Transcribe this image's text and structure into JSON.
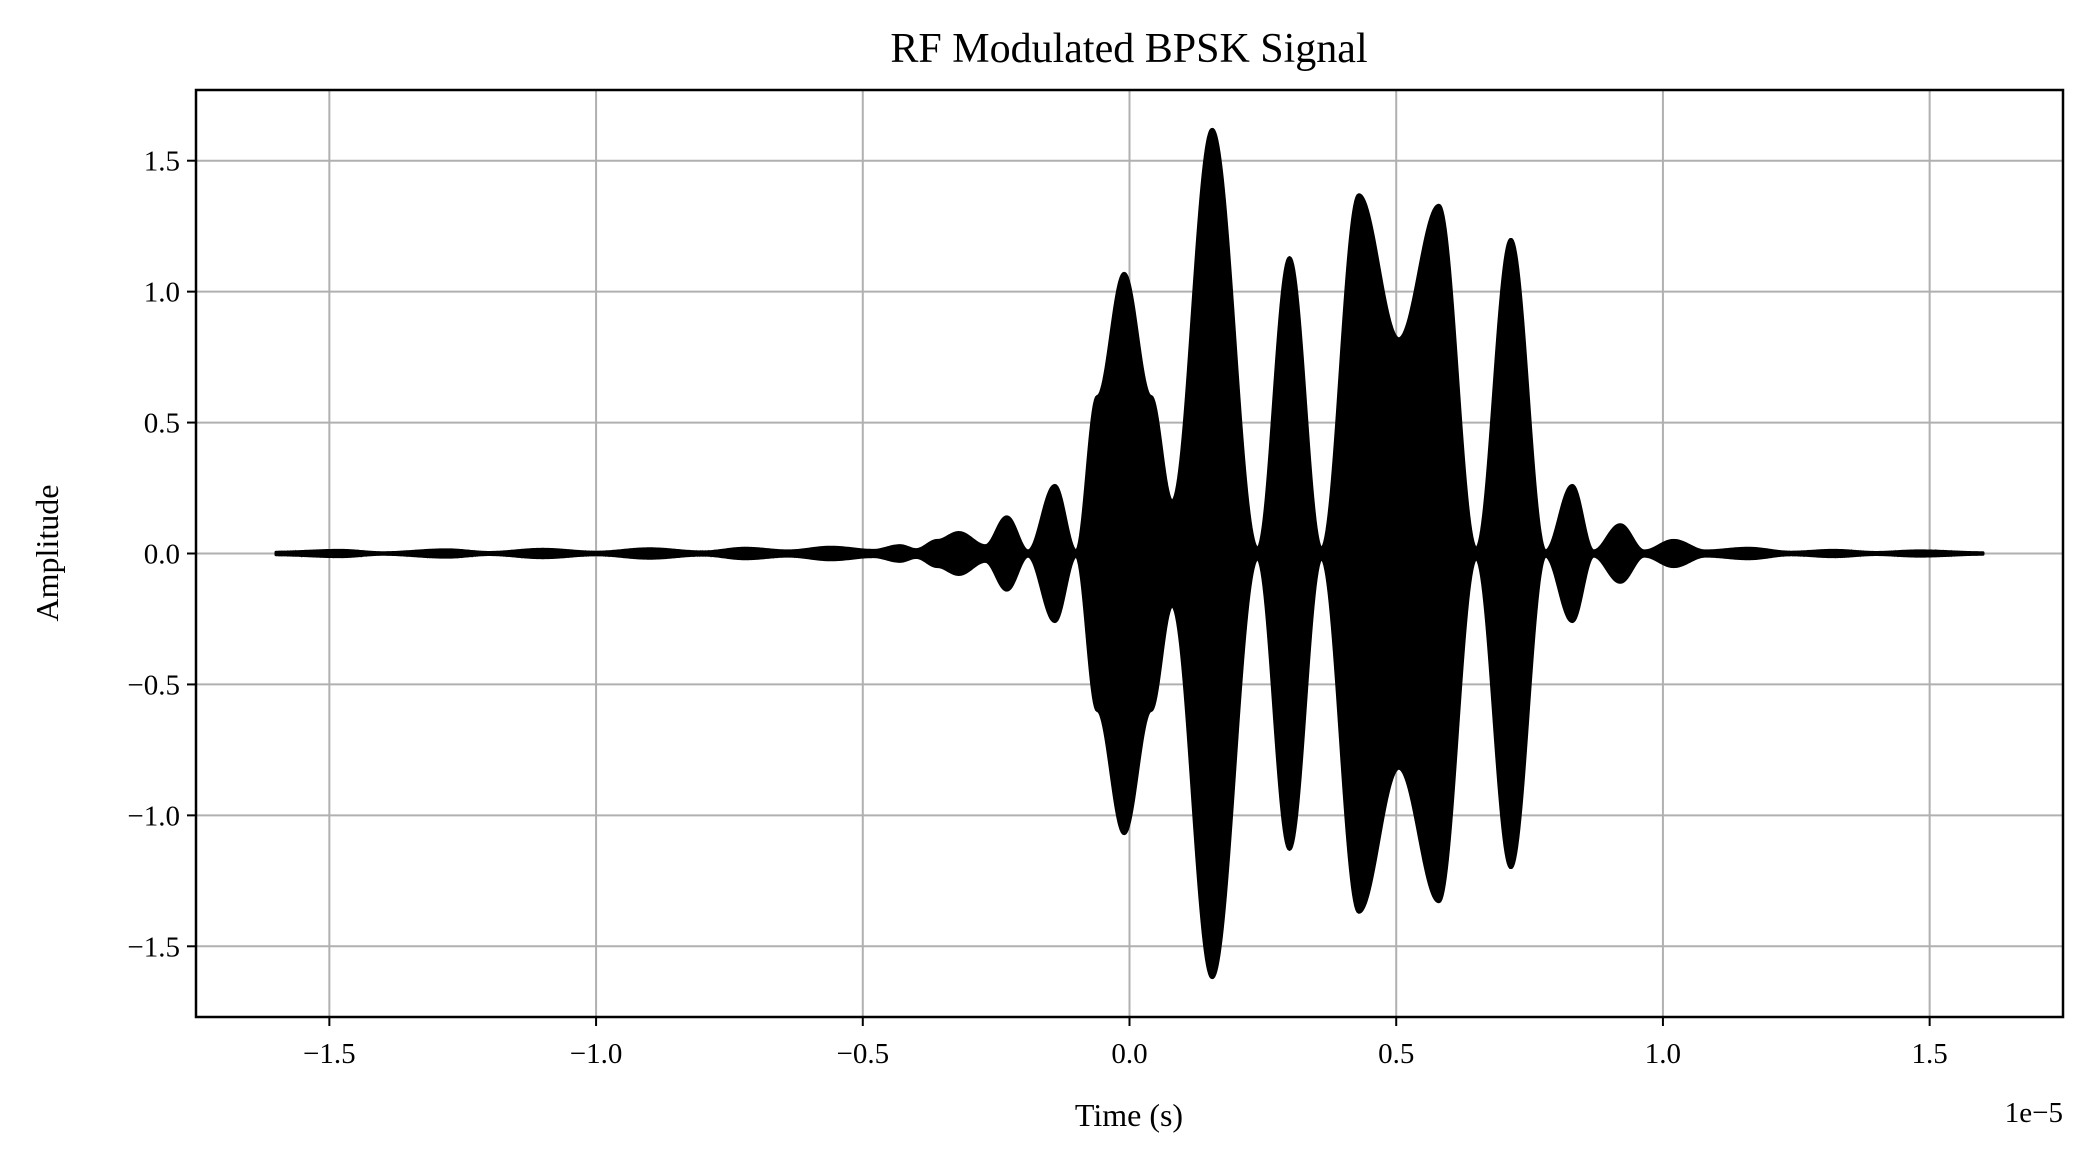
{
  "chart_data": {
    "type": "line",
    "title": "RF Modulated BPSK Signal",
    "xlabel": "Time (s)",
    "ylabel": "Amplitude",
    "x_scale_label": "1e−5",
    "xlim": [
      -1.75,
      1.75
    ],
    "ylim": [
      -1.77,
      1.77
    ],
    "x_range": [
      -1.6,
      1.6
    ],
    "x_ticks": [
      -1.5,
      -1.0,
      -0.5,
      0.0,
      0.5,
      1.0,
      1.5
    ],
    "x_tick_labels": [
      "−1.5",
      "−1.0",
      "−0.5",
      "0.0",
      "0.5",
      "1.0",
      "1.5"
    ],
    "y_ticks": [
      1.5,
      1.0,
      0.5,
      0.0,
      -0.5,
      -1.0,
      -1.5
    ],
    "y_tick_labels": [
      "1.5",
      "1.0",
      "0.5",
      "0.0",
      "−0.5",
      "−1.0",
      "−1.5"
    ],
    "grid": true,
    "series_color": "#000000",
    "envelope": {
      "x": [
        -1.6,
        -1.48,
        -1.4,
        -1.28,
        -1.2,
        -1.1,
        -1.0,
        -0.9,
        -0.8,
        -0.72,
        -0.64,
        -0.56,
        -0.48,
        -0.43,
        -0.4,
        -0.36,
        -0.32,
        -0.27,
        -0.23,
        -0.19,
        -0.14,
        -0.1,
        -0.06,
        -0.01,
        0.04,
        0.08,
        0.155,
        0.24,
        0.3,
        0.36,
        0.43,
        0.505,
        0.58,
        0.65,
        0.715,
        0.78,
        0.83,
        0.87,
        0.92,
        0.965,
        1.02,
        1.08,
        1.16,
        1.24,
        1.32,
        1.4,
        1.48,
        1.6
      ],
      "y": [
        0.005,
        0.012,
        0.003,
        0.014,
        0.004,
        0.016,
        0.005,
        0.018,
        0.006,
        0.02,
        0.01,
        0.024,
        0.012,
        0.03,
        0.015,
        0.05,
        0.08,
        0.03,
        0.14,
        0.01,
        0.26,
        0.01,
        0.6,
        1.07,
        0.6,
        0.2,
        1.62,
        0.02,
        1.13,
        0.02,
        1.37,
        0.82,
        1.33,
        0.02,
        1.2,
        0.01,
        0.26,
        0.01,
        0.11,
        0.01,
        0.05,
        0.01,
        0.02,
        0.005,
        0.012,
        0.004,
        0.01,
        0.003
      ]
    }
  }
}
